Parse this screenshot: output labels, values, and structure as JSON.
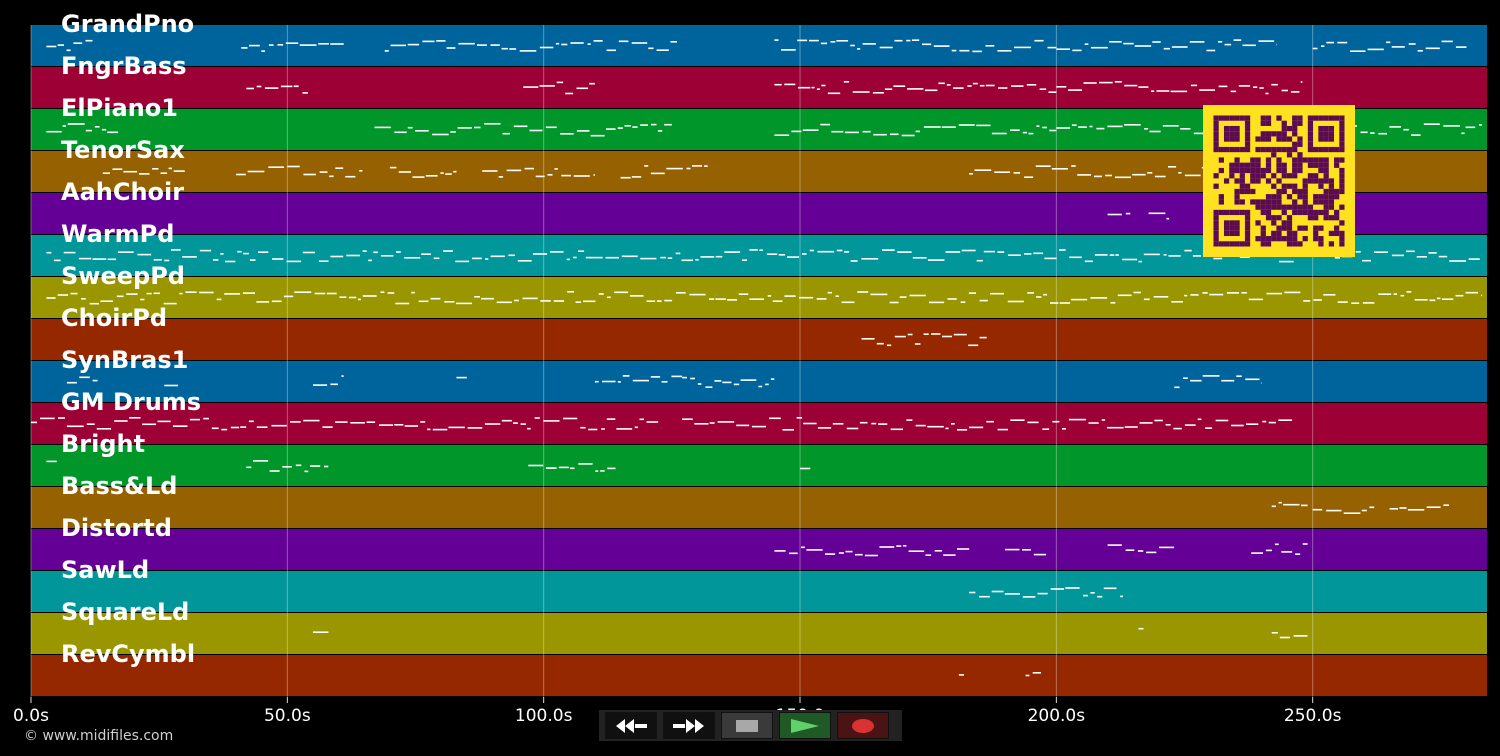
{
  "tracks": [
    {
      "name": "GrandPno",
      "color": "#00649c"
    },
    {
      "name": "FngrBass",
      "color": "#9c0034"
    },
    {
      "name": "ElPiano1",
      "color": "#00962a"
    },
    {
      "name": "TenorSax",
      "color": "#966100"
    },
    {
      "name": "AahChoir",
      "color": "#640096"
    },
    {
      "name": "WarmPd",
      "color": "#00969a"
    },
    {
      "name": "SweepPd",
      "color": "#9a9600"
    },
    {
      "name": "ChoirPd",
      "color": "#962800"
    },
    {
      "name": "SynBras1",
      "color": "#00649c"
    },
    {
      "name": "GM Drums",
      "color": "#9c0034"
    },
    {
      "name": "Bright",
      "color": "#00962a"
    },
    {
      "name": "Bass&Ld",
      "color": "#966100"
    },
    {
      "name": "Distortd",
      "color": "#640096"
    },
    {
      "name": "SawLd",
      "color": "#00969a"
    },
    {
      "name": "SquareLd",
      "color": "#9a9600"
    },
    {
      "name": "RevCymbl",
      "color": "#962800"
    }
  ],
  "axis": {
    "ticks": [
      {
        "label": "0.0s",
        "value": 0
      },
      {
        "label": "50.0s",
        "value": 50
      },
      {
        "label": "100.0s",
        "value": 100
      },
      {
        "label": "150.0",
        "value": 150
      },
      {
        "label": "200.0s",
        "value": 200
      },
      {
        "label": "250.0s",
        "value": 250
      }
    ],
    "max_seconds": 284
  },
  "notes": [
    {
      "track": 0,
      "segments": [
        [
          3,
          12
        ],
        [
          41,
          61
        ],
        [
          69,
          126
        ],
        [
          145,
          200
        ],
        [
          200,
          243
        ],
        [
          250,
          280
        ]
      ]
    },
    {
      "track": 1,
      "segments": [
        [
          42,
          54
        ],
        [
          96,
          110
        ],
        [
          145,
          200
        ],
        [
          200,
          248
        ]
      ]
    },
    {
      "track": 2,
      "segments": [
        [
          3,
          17
        ],
        [
          67,
          125
        ],
        [
          145,
          200
        ],
        [
          200,
          283
        ]
      ]
    },
    {
      "track": 3,
      "segments": [
        [
          14,
          30
        ],
        [
          40,
          65
        ],
        [
          70,
          83
        ],
        [
          88,
          110
        ],
        [
          115,
          132
        ],
        [
          183,
          230
        ],
        [
          235,
          240
        ]
      ]
    },
    {
      "track": 4,
      "segments": [
        [
          210,
          215
        ],
        [
          218,
          222
        ]
      ]
    },
    {
      "track": 5,
      "segments": [
        [
          3,
          283
        ]
      ]
    },
    {
      "track": 6,
      "segments": [
        [
          3,
          283
        ]
      ]
    },
    {
      "track": 7,
      "segments": [
        [
          162,
          187
        ]
      ]
    },
    {
      "track": 8,
      "segments": [
        [
          7,
          13
        ],
        [
          26,
          29
        ],
        [
          55,
          61
        ],
        [
          83,
          85
        ],
        [
          110,
          127
        ],
        [
          127,
          145
        ],
        [
          223,
          240
        ]
      ]
    },
    {
      "track": 9,
      "segments": [
        [
          0,
          123
        ],
        [
          127,
          246
        ]
      ]
    },
    {
      "track": 10,
      "segments": [
        [
          3,
          5
        ],
        [
          42,
          58
        ],
        [
          97,
          114
        ],
        [
          150,
          152
        ]
      ]
    },
    {
      "track": 11,
      "segments": [
        [
          242,
          249
        ],
        [
          250,
          262
        ],
        [
          265,
          277
        ]
      ]
    },
    {
      "track": 12,
      "segments": [
        [
          145,
          183
        ],
        [
          190,
          198
        ],
        [
          210,
          223
        ],
        [
          238,
          249
        ]
      ]
    },
    {
      "track": 13,
      "segments": [
        [
          183,
          213
        ]
      ]
    },
    {
      "track": 14,
      "segments": [
        [
          55,
          58
        ],
        [
          216,
          217
        ],
        [
          242,
          249
        ]
      ]
    },
    {
      "track": 15,
      "segments": [
        [
          181,
          182
        ],
        [
          194,
          197
        ]
      ]
    }
  ],
  "copyright": "© www.midifiles.com",
  "controls": [
    {
      "name": "rewind-button",
      "icon": "rewind-icon"
    },
    {
      "name": "fast-forward-button",
      "icon": "fast-forward-icon"
    },
    {
      "name": "stop-button",
      "icon": "stop-icon"
    },
    {
      "name": "play-button",
      "icon": "play-icon"
    },
    {
      "name": "record-button",
      "icon": "record-icon"
    }
  ],
  "qr_colors": {
    "fg": "#5a0b52",
    "bg": "#ffe21f"
  }
}
